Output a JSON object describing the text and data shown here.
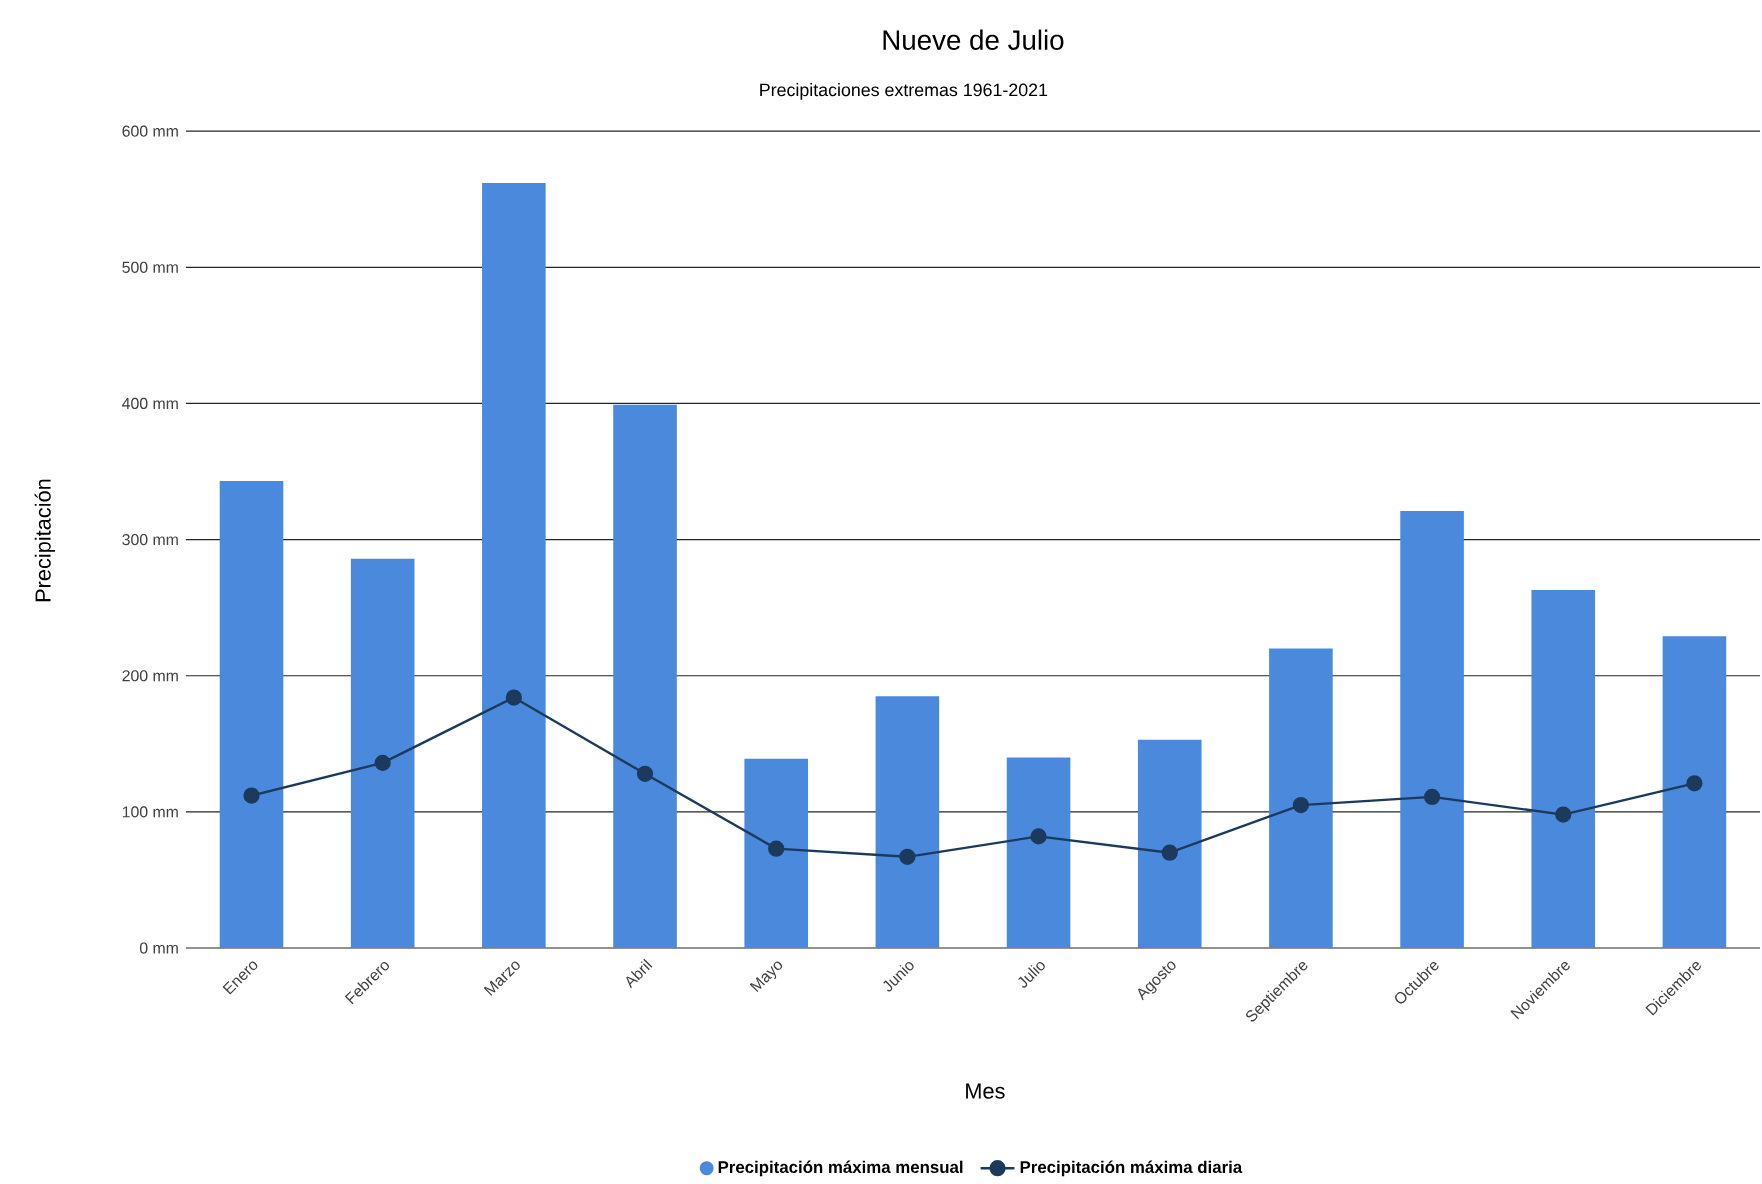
{
  "chart_data": {
    "type": "bar",
    "title": "Nueve de Julio",
    "subtitle": "Precipitaciones extremas 1961-2021",
    "xlabel": "Mes",
    "ylabel": "Precipitación",
    "categories": [
      "Enero",
      "Febrero",
      "Marzo",
      "Abril",
      "Mayo",
      "Junio",
      "Julio",
      "Agosto",
      "Septiembre",
      "Octubre",
      "Noviembre",
      "Diciembre"
    ],
    "series": [
      {
        "name": "Precipitación máxima mensual",
        "color": "#4a89dc",
        "values": [
          343,
          286,
          562,
          399,
          139,
          185,
          140,
          153,
          220,
          321,
          263,
          229
        ]
      },
      {
        "name": "Precipitación máxima diaria",
        "color": "#1c3a5e",
        "type": "line",
        "marker": "circle",
        "values": [
          112,
          136,
          184,
          128,
          73,
          67,
          82,
          70,
          105,
          111,
          98,
          121
        ]
      }
    ],
    "ylim": [
      0,
      600
    ],
    "yticks": [
      {
        "value": 0,
        "label": "0 mm"
      },
      {
        "value": 100,
        "label": "100 mm"
      },
      {
        "value": 200,
        "label": "200 mm"
      },
      {
        "value": 300,
        "label": "300 mm"
      },
      {
        "value": 400,
        "label": "400 mm"
      },
      {
        "value": 500,
        "label": "500 mm"
      },
      {
        "value": 600,
        "label": "600 mm"
      }
    ],
    "grid": "y",
    "legend": "bottom"
  }
}
